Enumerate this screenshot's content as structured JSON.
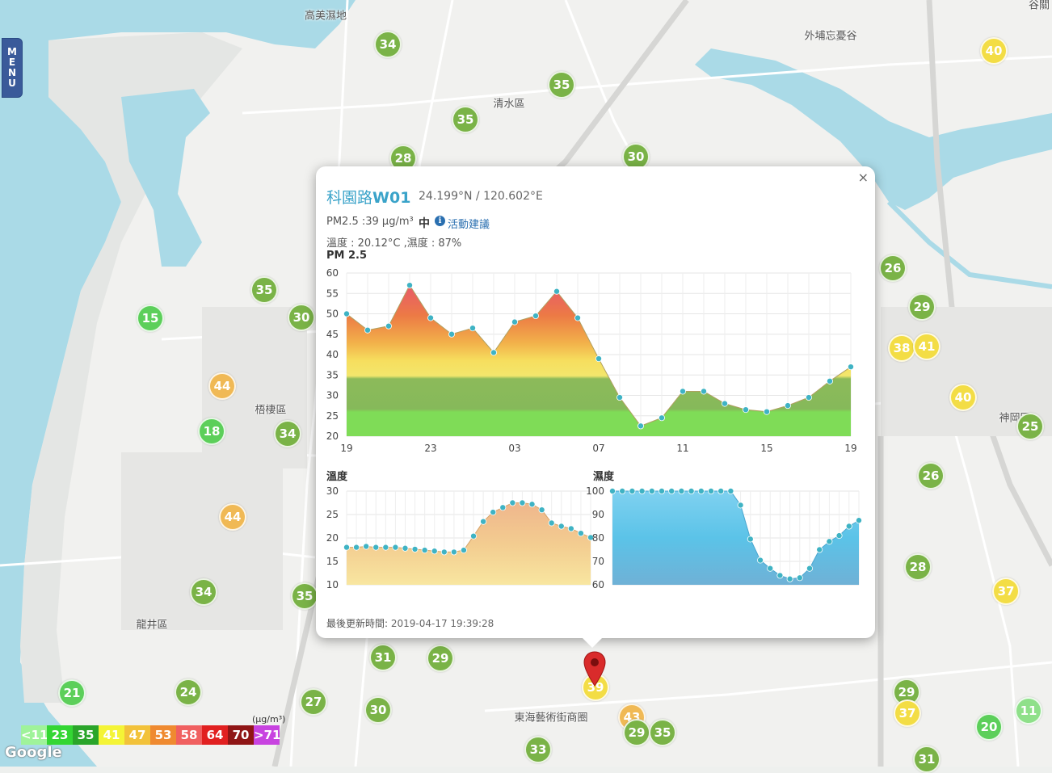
{
  "menu": {
    "label": "MENU",
    "letters": [
      "M",
      "E",
      "N",
      "U"
    ]
  },
  "map_labels": [
    {
      "text": "高美濕地"
    },
    {
      "text": "清水區"
    },
    {
      "text": "梧棲區"
    },
    {
      "text": "龍井區"
    },
    {
      "text": "東海藝術街商圈"
    },
    {
      "text": "外埔忘憂谷"
    },
    {
      "text": "神岡區"
    },
    {
      "text": "谷關"
    }
  ],
  "markers": [
    {
      "value": "34",
      "color": "#7ab347"
    },
    {
      "value": "35",
      "color": "#7ab347"
    },
    {
      "value": "35",
      "color": "#7ab347"
    },
    {
      "value": "28",
      "color": "#7ab347"
    },
    {
      "value": "30",
      "color": "#7ab347"
    },
    {
      "value": "40",
      "color": "#f3dd45"
    },
    {
      "value": "35",
      "color": "#7ab347"
    },
    {
      "value": "15",
      "color": "#5ccf5a"
    },
    {
      "value": "30",
      "color": "#7ab347"
    },
    {
      "value": "44",
      "color": "#f0b955"
    },
    {
      "value": "18",
      "color": "#5ccf5a"
    },
    {
      "value": "34",
      "color": "#7ab347"
    },
    {
      "value": "44",
      "color": "#f0b955"
    },
    {
      "value": "34",
      "color": "#7ab347"
    },
    {
      "value": "35",
      "color": "#7ab347"
    },
    {
      "value": "21",
      "color": "#5ccf5a"
    },
    {
      "value": "24",
      "color": "#7ab347"
    },
    {
      "value": "27",
      "color": "#7ab347"
    },
    {
      "value": "30",
      "color": "#7ab347"
    },
    {
      "value": "31",
      "color": "#7ab347"
    },
    {
      "value": "29",
      "color": "#7ab347"
    },
    {
      "value": "33",
      "color": "#7ab347"
    },
    {
      "value": "43",
      "color": "#f0b955"
    },
    {
      "value": "29",
      "color": "#7ab347"
    },
    {
      "value": "35",
      "color": "#7ab347"
    },
    {
      "value": "26",
      "color": "#7ab347"
    },
    {
      "value": "29",
      "color": "#7ab347"
    },
    {
      "value": "38",
      "color": "#f3dd45"
    },
    {
      "value": "41",
      "color": "#f3dd45"
    },
    {
      "value": "40",
      "color": "#f3dd45"
    },
    {
      "value": "25",
      "color": "#7ab347"
    },
    {
      "value": "26",
      "color": "#7ab347"
    },
    {
      "value": "28",
      "color": "#7ab347"
    },
    {
      "value": "37",
      "color": "#f3dd45"
    },
    {
      "value": "29",
      "color": "#7ab347"
    },
    {
      "value": "37",
      "color": "#f3dd45"
    },
    {
      "value": "20",
      "color": "#5ccf5a"
    },
    {
      "value": "11",
      "color": "#8fe08a"
    },
    {
      "value": "31",
      "color": "#7ab347"
    },
    {
      "value": "39",
      "color": "#f3dd45"
    }
  ],
  "popup": {
    "close": "×",
    "station_name": "科園路",
    "station_code": "W01",
    "coords": "24.199°N / 120.602°E",
    "pm_text": "PM2.5 :39 μg/m³",
    "pm_level": "中",
    "info_icon": "i",
    "activity_link": "活動建議",
    "temp_humidity": "溫度 : 20.12°C ,濕度 : 87%",
    "updated_label": "最後更新時間: ",
    "updated_value": "2019-04-17 19:39:28"
  },
  "chart_data": [
    {
      "type": "area",
      "title": "PM 2.5",
      "x_tick_labels": [
        "19",
        "23",
        "03",
        "07",
        "11",
        "15",
        "19"
      ],
      "ylim": [
        20,
        60
      ],
      "yticks": [
        20,
        25,
        30,
        35,
        40,
        45,
        50,
        55,
        60
      ],
      "grid": true,
      "values": [
        50,
        46,
        47,
        57,
        49,
        45,
        46.5,
        40.5,
        48,
        49.5,
        55.5,
        49,
        39,
        29.5,
        22.5,
        24.5,
        31,
        31,
        28,
        26.5,
        26,
        27.5,
        29.5,
        33.5,
        37
      ]
    },
    {
      "type": "area",
      "title": "溫度",
      "ylim": [
        10,
        30
      ],
      "yticks": [
        10,
        15,
        20,
        25,
        30
      ],
      "grid": true,
      "values": [
        18,
        18,
        18.2,
        18,
        18,
        18,
        17.8,
        17.6,
        17.4,
        17.2,
        17,
        17,
        17.4,
        20.4,
        23.5,
        25.5,
        26.5,
        27.5,
        27.5,
        27.2,
        26,
        23.2,
        22.5,
        22,
        21,
        20.1
      ]
    },
    {
      "type": "area",
      "title": "濕度",
      "ylim": [
        60,
        100
      ],
      "yticks": [
        60,
        70,
        80,
        90,
        100
      ],
      "grid": true,
      "values": [
        100,
        100,
        100,
        100,
        100,
        100,
        100,
        100,
        100,
        100,
        100,
        100,
        100,
        94,
        79.5,
        70.5,
        67,
        64,
        62.5,
        63,
        67,
        75,
        78.5,
        81,
        85,
        87.5
      ]
    }
  ],
  "legend": {
    "unit": "(μg/m³)",
    "cells": [
      {
        "label": "<11",
        "color": "#9ff39a"
      },
      {
        "label": "23",
        "color": "#33d633"
      },
      {
        "label": "35",
        "color": "#2aa52a"
      },
      {
        "label": "41",
        "color": "#f4f436"
      },
      {
        "label": "47",
        "color": "#f2c23a"
      },
      {
        "label": "53",
        "color": "#ef8a30"
      },
      {
        "label": "58",
        "color": "#f06060"
      },
      {
        "label": "64",
        "color": "#e12020"
      },
      {
        "label": "70",
        "color": "#8f1515"
      },
      {
        "label": ">71",
        "color": "#c843e0"
      }
    ]
  },
  "attribution": "Google",
  "colors": {
    "water": "#aadae7",
    "land": "#f2f2f0",
    "accent": "#3aa3c9"
  }
}
